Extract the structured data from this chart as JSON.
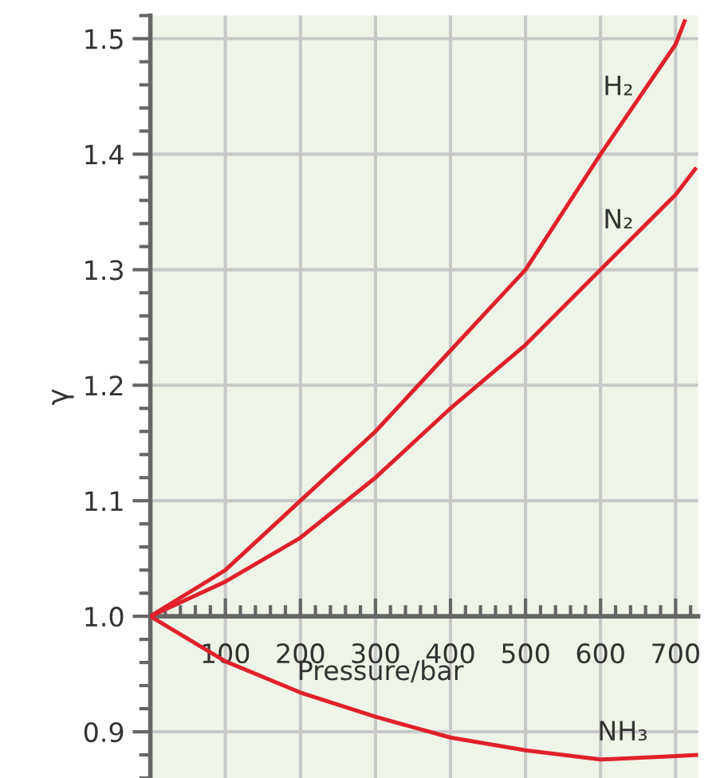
{
  "chart_data": {
    "type": "line",
    "xlabel": "Pressure/bar",
    "ylabel": "γ",
    "series": [
      {
        "name": "H₂",
        "color": "#e0202a",
        "x": [
          0,
          100,
          200,
          300,
          400,
          500,
          600,
          700,
          712
        ],
        "values": [
          1.0,
          1.04,
          1.1,
          1.16,
          1.23,
          1.3,
          1.4,
          1.495,
          1.515
        ]
      },
      {
        "name": "N₂",
        "color": "#e0202a",
        "x": [
          0,
          100,
          200,
          300,
          400,
          500,
          600,
          700,
          726
        ],
        "values": [
          1.0,
          1.03,
          1.068,
          1.12,
          1.18,
          1.235,
          1.3,
          1.365,
          1.387
        ]
      },
      {
        "name": "NH₃",
        "color": "#e0202a",
        "x": [
          0,
          100,
          200,
          300,
          400,
          500,
          600,
          700,
          730
        ],
        "values": [
          1.0,
          0.961,
          0.934,
          0.913,
          0.895,
          0.884,
          0.876,
          0.879,
          0.88
        ]
      }
    ],
    "xlim": [
      0,
      730
    ],
    "ylim": [
      0.86,
      1.52
    ],
    "xticks": [
      100,
      200,
      300,
      400,
      500,
      600,
      700
    ],
    "yticks": [
      0.9,
      {
        "value": 1.0,
        "label": "1.0"
      },
      1.1,
      1.2,
      1.3,
      1.4,
      1.5
    ],
    "grid": true,
    "marker": "none",
    "line_style": "solid"
  }
}
